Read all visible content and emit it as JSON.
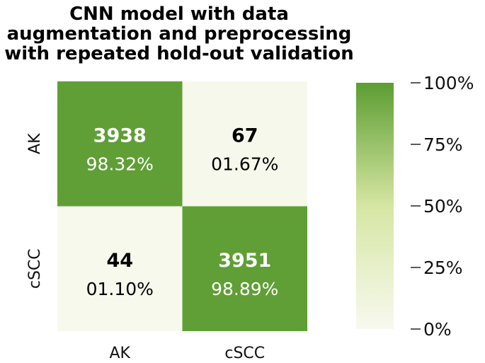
{
  "chart_data": {
    "type": "heatmap",
    "title_lines": [
      "CNN model with data",
      "augmentation and preprocessing",
      "with repeated hold-out validation"
    ],
    "row_labels": [
      "AK",
      "cSCC"
    ],
    "col_labels": [
      "AK",
      "cSCC"
    ],
    "counts": [
      [
        3938,
        67
      ],
      [
        44,
        3951
      ]
    ],
    "count_labels": [
      [
        "3938",
        "67"
      ],
      [
        "44",
        "3951"
      ]
    ],
    "percent_labels": [
      [
        "98.32%",
        "01.67%"
      ],
      [
        "01.10%",
        "98.89%"
      ]
    ],
    "percent_values": [
      [
        98.32,
        1.67
      ],
      [
        1.1,
        98.89
      ]
    ],
    "colorbar": {
      "range": [
        0,
        100
      ],
      "ticks": [
        0,
        25,
        50,
        75,
        100
      ],
      "tick_labels": [
        "0%",
        "25%",
        "50%",
        "75%",
        "100%"
      ]
    },
    "colors": {
      "low": "#f8f9ef",
      "mid": "#d6e6a3",
      "high": "#5c9d32",
      "dark_text": "#000000",
      "light_text": "#ffffff"
    }
  }
}
